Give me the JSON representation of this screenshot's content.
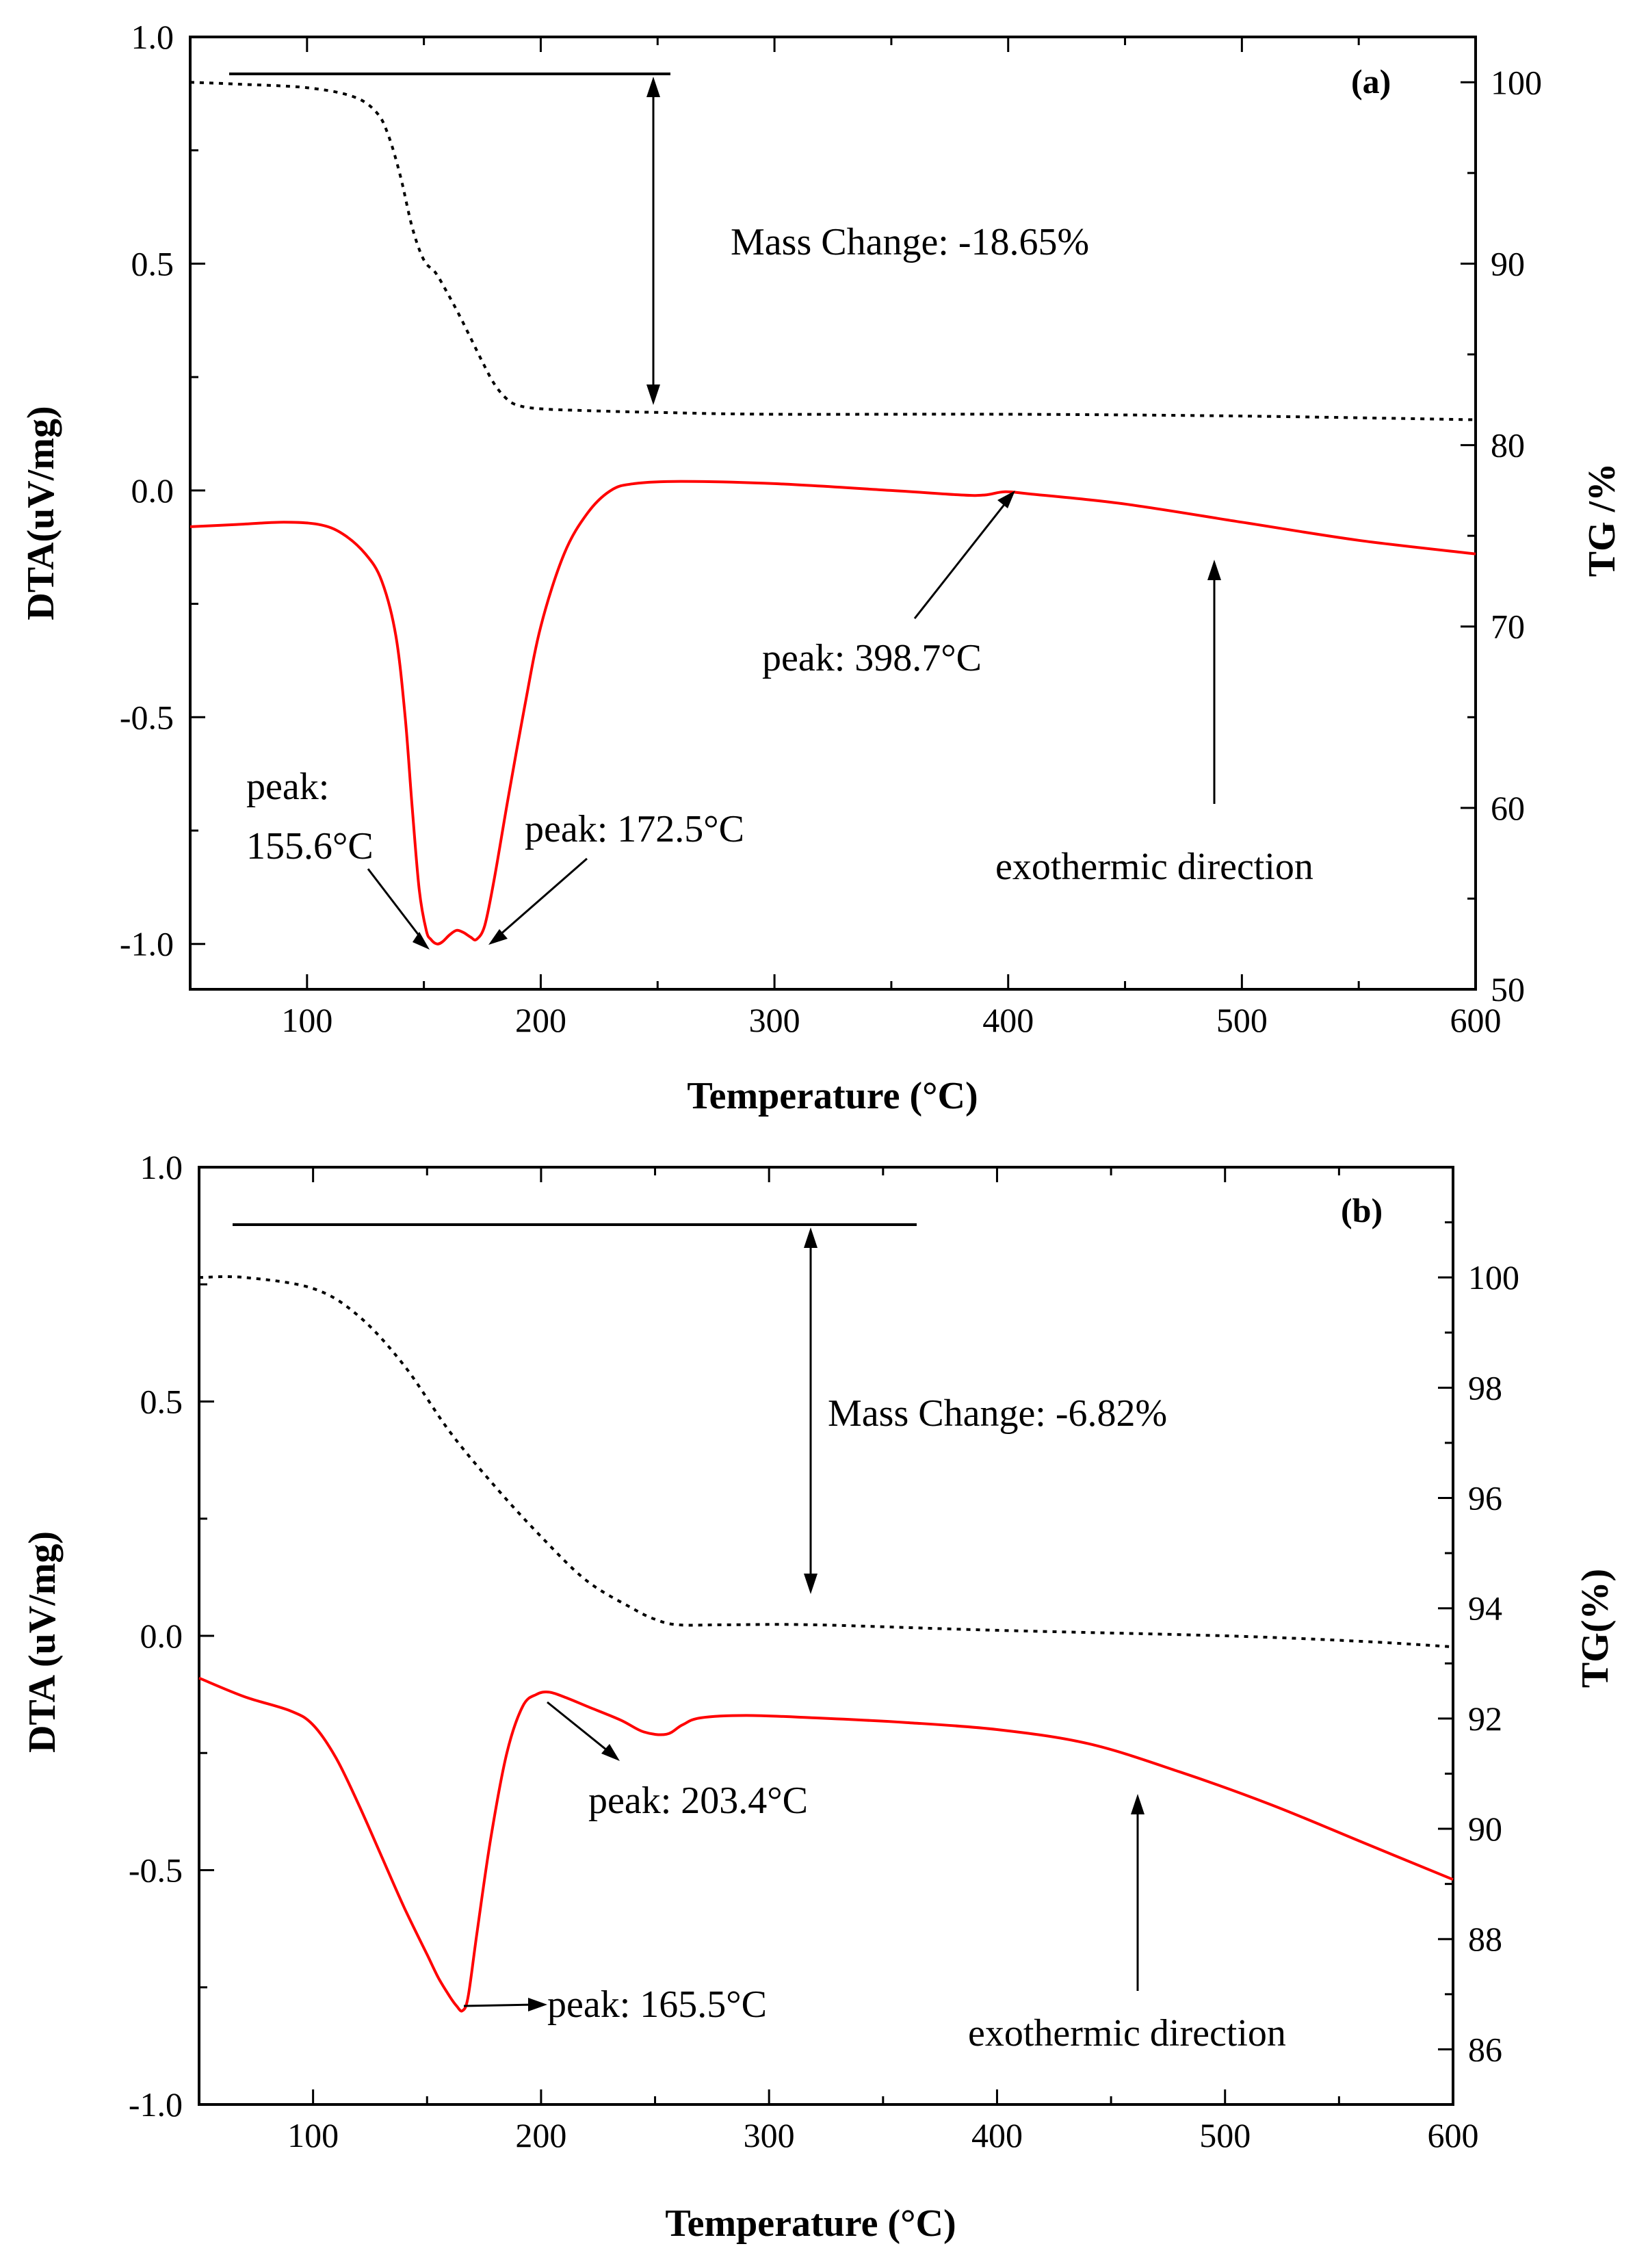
{
  "colors": {
    "dta": "#ff0000",
    "tg": "#000000",
    "axes": "#000000"
  },
  "chart_data": [
    {
      "type": "line",
      "panel_label": "(a)",
      "xlabel": "Temperature (°C)",
      "ylabel": "DTA(uV/mg)",
      "y2label": "TG /%",
      "xlim": [
        50,
        600
      ],
      "ylim": [
        -1.1,
        1.0
      ],
      "y2lim": [
        50,
        102.5
      ],
      "x_ticks": [
        100,
        200,
        300,
        400,
        500,
        600
      ],
      "y_ticks": [
        -1.0,
        -0.5,
        0.0,
        0.5,
        1.0
      ],
      "y_tick_labels": [
        "-1.0",
        "-0.5",
        "0.0",
        "0.5",
        "1.0"
      ],
      "y2_ticks": [
        50,
        60,
        70,
        80,
        90,
        100
      ],
      "grid": false,
      "series": [
        {
          "name": "DTA",
          "axis": "left",
          "style": "solid",
          "color": "#ff0000",
          "x": [
            50,
            70,
            90,
            105,
            115,
            125,
            132,
            138,
            142,
            145,
            148,
            151,
            153,
            155.6,
            158,
            161,
            164,
            167,
            170,
            172.5,
            176,
            180,
            186,
            193,
            200,
            210,
            220,
            230,
            240,
            260,
            300,
            350,
            380,
            390,
            398.7,
            410,
            450,
            500,
            550,
            600
          ],
          "y": [
            -0.08,
            -0.075,
            -0.07,
            -0.075,
            -0.095,
            -0.14,
            -0.2,
            -0.32,
            -0.5,
            -0.7,
            -0.88,
            -0.97,
            -0.99,
            -1.0,
            -0.995,
            -0.98,
            -0.97,
            -0.975,
            -0.985,
            -0.99,
            -0.96,
            -0.86,
            -0.68,
            -0.48,
            -0.3,
            -0.14,
            -0.05,
            0.0,
            0.015,
            0.02,
            0.015,
            0.0,
            -0.01,
            -0.01,
            -0.003,
            -0.008,
            -0.03,
            -0.07,
            -0.11,
            -0.14
          ]
        },
        {
          "name": "TG",
          "axis": "right",
          "style": "dotted",
          "color": "#000000",
          "x": [
            50,
            70,
            100,
            120,
            130,
            135,
            140,
            145,
            150,
            155,
            160,
            165,
            170,
            175,
            180,
            185,
            190,
            200,
            220,
            250,
            300,
            400,
            500,
            600
          ],
          "y": [
            100,
            99.9,
            99.7,
            99.2,
            98.3,
            97.0,
            94.8,
            92.0,
            90.2,
            89.5,
            88.4,
            87.2,
            85.9,
            84.6,
            83.4,
            82.6,
            82.2,
            82.0,
            81.9,
            81.8,
            81.7,
            81.7,
            81.6,
            81.4
          ]
        }
      ],
      "annotations": {
        "mass_change": "Mass Change: -18.65%",
        "peak_1": "peak: 398.7°C",
        "peak_2_line1": "peak:",
        "peak_2_line2": "155.6°C",
        "peak_3": "peak: 172.5°C",
        "exo": "exothermic direction"
      }
    },
    {
      "type": "line",
      "panel_label": "(b)",
      "xlabel": "Temperature (°C)",
      "ylabel": "DTA (uV/mg)",
      "y2label": "TG(%)",
      "xlim": [
        50,
        600
      ],
      "ylim": [
        -1.0,
        1.0
      ],
      "y2lim": [
        85,
        102
      ],
      "x_ticks": [
        100,
        200,
        300,
        400,
        500,
        600
      ],
      "y_ticks": [
        -1.0,
        -0.5,
        0.0,
        0.5,
        1.0
      ],
      "y_tick_labels": [
        "-1.0",
        "-0.5",
        "0.0",
        "0.5",
        "1.0"
      ],
      "y2_ticks": [
        86,
        88,
        90,
        92,
        94,
        96,
        98,
        100
      ],
      "grid": false,
      "series": [
        {
          "name": "DTA",
          "axis": "left",
          "style": "solid",
          "color": "#ff0000",
          "x": [
            50,
            70,
            90,
            100,
            110,
            120,
            130,
            140,
            150,
            155,
            160,
            163,
            165.5,
            168,
            172,
            178,
            185,
            192,
            198,
            203.4,
            210,
            220,
            235,
            245,
            255,
            262,
            270,
            290,
            320,
            360,
            400,
            440,
            480,
            520,
            560,
            600
          ],
          "y": [
            -0.09,
            -0.13,
            -0.16,
            -0.19,
            -0.26,
            -0.36,
            -0.47,
            -0.58,
            -0.68,
            -0.73,
            -0.77,
            -0.79,
            -0.8,
            -0.77,
            -0.63,
            -0.43,
            -0.25,
            -0.15,
            -0.125,
            -0.12,
            -0.13,
            -0.15,
            -0.18,
            -0.205,
            -0.21,
            -0.19,
            -0.175,
            -0.17,
            -0.175,
            -0.185,
            -0.2,
            -0.23,
            -0.29,
            -0.36,
            -0.44,
            -0.52
          ]
        },
        {
          "name": "TG",
          "axis": "right",
          "style": "dotted",
          "color": "#000000",
          "x": [
            50,
            70,
            100,
            120,
            140,
            160,
            180,
            200,
            220,
            240,
            250,
            260,
            280,
            320,
            400,
            500,
            560,
            600
          ],
          "y": [
            100,
            100,
            99.8,
            99.3,
            98.4,
            97.2,
            96.2,
            95.3,
            94.5,
            94.0,
            93.8,
            93.7,
            93.7,
            93.7,
            93.6,
            93.5,
            93.4,
            93.3
          ]
        }
      ],
      "annotations": {
        "mass_change": "Mass Change: -6.82%",
        "peak_1": "peak: 203.4°C",
        "peak_2": "peak: 165.5°C",
        "exo": "exothermic direction"
      }
    }
  ]
}
